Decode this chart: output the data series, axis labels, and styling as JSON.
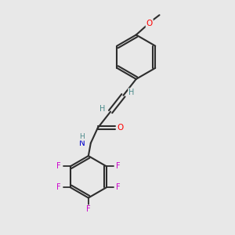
{
  "background_color": "#e8e8e8",
  "bond_color": "#2d2d2d",
  "atom_colors": {
    "O": "#ff0000",
    "N": "#0000cc",
    "F": "#cc00cc",
    "H": "#4a8a8a",
    "C": "#2d2d2d"
  },
  "figsize": [
    3.0,
    3.0
  ],
  "dpi": 100
}
